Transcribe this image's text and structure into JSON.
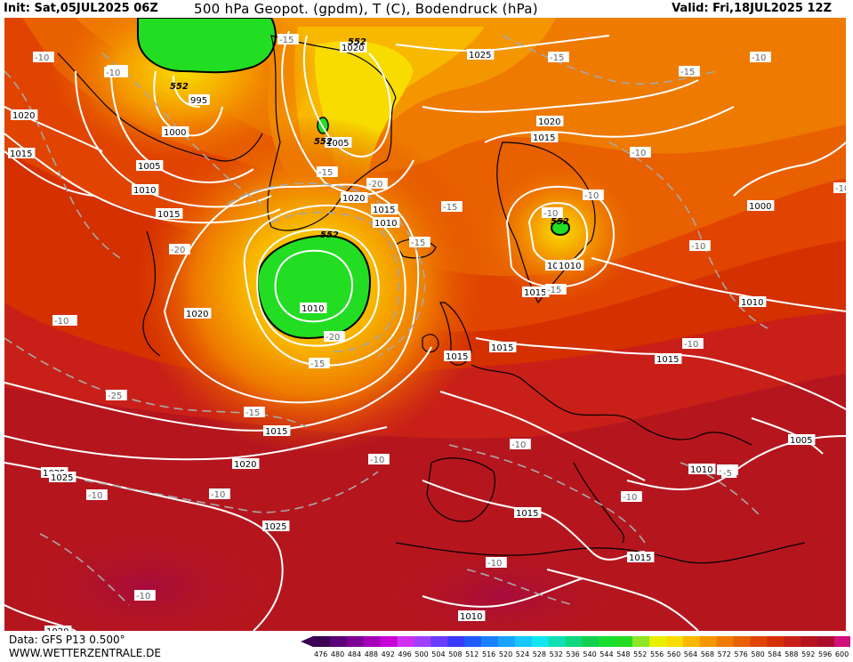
{
  "header": {
    "init": "Init: Sat,05JUL2025 06Z",
    "title": "500 hPa Geopot. (gpdm), T (C), Bodendruck (hPa)",
    "valid": "Valid: Fri,18JUL2025 12Z"
  },
  "footer": {
    "data_source": "Data: GFS P13 0.500°",
    "website": "WWW.WETTERZENTRALE.DE"
  },
  "colors": {
    "background_field": "#b5161e",
    "geopot_552_green": "#22dd22",
    "isobar_line": "#ffffff",
    "coast_line": "#000000"
  },
  "color_scale": {
    "labels": [
      "476",
      "480",
      "484",
      "488",
      "492",
      "496",
      "500",
      "504",
      "508",
      "512",
      "516",
      "520",
      "524",
      "528",
      "532",
      "536",
      "540",
      "544",
      "548",
      "552",
      "556",
      "560",
      "564",
      "568",
      "572",
      "576",
      "580",
      "584",
      "588",
      "592",
      "596",
      "600"
    ],
    "colors": [
      "#3b0052",
      "#5a0078",
      "#7d0094",
      "#a300b8",
      "#c800d8",
      "#d030f0",
      "#a040ff",
      "#6a3cff",
      "#3a3aff",
      "#1e5cff",
      "#1a80ff",
      "#18a4ff",
      "#18c8ff",
      "#12e6f0",
      "#10e0b4",
      "#10d880",
      "#14d050",
      "#18e030",
      "#22dd22",
      "#8ee628",
      "#e8f000",
      "#f8dc00",
      "#f8b800",
      "#f49600",
      "#ee7a00",
      "#e86000",
      "#e04400",
      "#d43000",
      "#c82018",
      "#b8141e",
      "#aa0e2c",
      "#d0107c"
    ]
  },
  "map": {
    "pressure_labels": [
      "1020",
      "1015",
      "1005",
      "1010",
      "1015",
      "1000",
      "995",
      "1020",
      "1025",
      "1020",
      "1015",
      "1010",
      "1000",
      "1010",
      "1020",
      "1005",
      "1015",
      "1010",
      "1025",
      "1015",
      "1015",
      "1015",
      "1010",
      "1015",
      "1010",
      "1005",
      "1015",
      "1020",
      "1025",
      "1020",
      "1015",
      "1010",
      "1020",
      "1025",
      "1015",
      "1010"
    ],
    "temp_labels": [
      "-10",
      "-15",
      "-15",
      "-15",
      "-15",
      "-10",
      "-15",
      "-10",
      "-10",
      "-10",
      "-10",
      "-25",
      "-20",
      "-15",
      "-15",
      "-15",
      "-20",
      "-15",
      "-10",
      "-10",
      "-10",
      "-10",
      "-10",
      "-10",
      "-10",
      "-15",
      "-20",
      "-15",
      "-10",
      "-10",
      "-10",
      "-5",
      "-10",
      "-10",
      "-10"
    ],
    "geopot_labels": [
      "552",
      "552",
      "552",
      "552",
      "552"
    ]
  }
}
